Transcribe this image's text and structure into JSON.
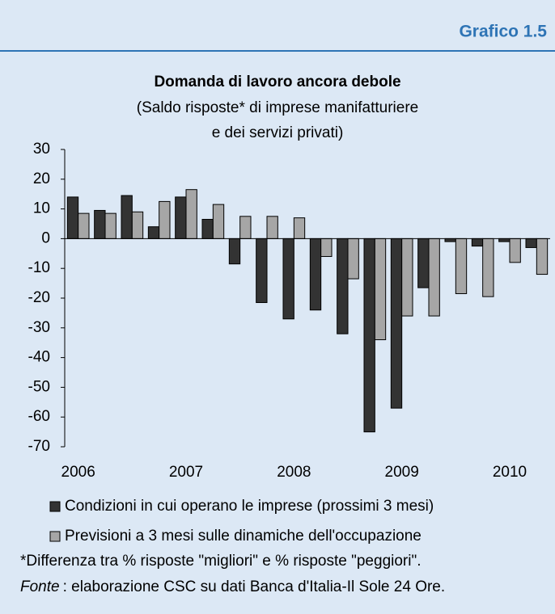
{
  "header": "Grafico 1.5",
  "chart_data": {
    "type": "bar",
    "title": "Domanda di lavoro ancora debole",
    "subtitle": [
      "(Saldo risposte* di imprese manifatturiere",
      "e dei servizi privati)"
    ],
    "categories": [
      "2006",
      null,
      null,
      null,
      "2007",
      null,
      null,
      null,
      "2008",
      null,
      null,
      null,
      "2009",
      null,
      null,
      null,
      "2010",
      null
    ],
    "series": [
      {
        "name": "Condizioni in cui operano le imprese (prossimi 3 mesi)",
        "color": "#333333",
        "values": [
          14,
          9.5,
          14.5,
          4,
          14,
          6.5,
          -8.5,
          -21.5,
          -27,
          -24,
          -32,
          -65,
          -57,
          -16.5,
          -1,
          -2.5,
          -1,
          -3
        ]
      },
      {
        "name": "Previsioni a 3 mesi sulle dinamiche dell'occupazione",
        "color": "#a6a6a6",
        "values": [
          8.5,
          8.5,
          9,
          12.5,
          16.5,
          11.5,
          7.5,
          7.5,
          7,
          -6,
          -13.5,
          -34,
          -26,
          -26,
          -18.5,
          -19.5,
          -8,
          -12
        ]
      }
    ],
    "ylim": [
      -70,
      30
    ],
    "yticks": [
      -70,
      -60,
      -50,
      -40,
      -30,
      -20,
      -10,
      0,
      10,
      20,
      30
    ]
  },
  "footnote": "*Differenza tra % risposte \"migliori\" e % risposte \"peggiori\".",
  "source_label": "Fonte",
  "source_text": ": elaborazione CSC su dati Banca d'Italia-Il Sole 24 Ore."
}
